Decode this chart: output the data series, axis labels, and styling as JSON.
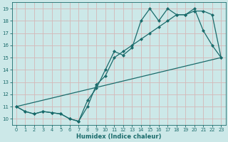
{
  "xlabel": "Humidex (Indice chaleur)",
  "bg_color": "#cce8e8",
  "grid_color": "#d4b8b8",
  "line_color": "#1a6b6b",
  "xlim": [
    -0.5,
    23.5
  ],
  "ylim": [
    9.5,
    19.5
  ],
  "xticks": [
    0,
    1,
    2,
    3,
    4,
    5,
    6,
    7,
    8,
    9,
    10,
    11,
    12,
    13,
    14,
    15,
    16,
    17,
    18,
    19,
    20,
    21,
    22,
    23
  ],
  "yticks": [
    10,
    11,
    12,
    13,
    14,
    15,
    16,
    17,
    18,
    19
  ],
  "line1_x": [
    0,
    1,
    2,
    3,
    4,
    5,
    6,
    7,
    8,
    9,
    10,
    11,
    12,
    13,
    14,
    15,
    16,
    17,
    18,
    19,
    20,
    21,
    22,
    23
  ],
  "line1_y": [
    11.0,
    10.6,
    10.4,
    10.6,
    10.5,
    10.4,
    10.0,
    9.8,
    11.5,
    12.5,
    14.0,
    15.5,
    15.2,
    15.8,
    18.0,
    19.0,
    18.0,
    19.0,
    18.5,
    18.5,
    19.0,
    17.2,
    16.0,
    15.0
  ],
  "line2_x": [
    0,
    23
  ],
  "line2_y": [
    11.0,
    15.0
  ],
  "line3_x": [
    0,
    1,
    2,
    3,
    4,
    5,
    6,
    7,
    8,
    9,
    10,
    11,
    12,
    13,
    14,
    15,
    16,
    17,
    18,
    19,
    20,
    21,
    22,
    23
  ],
  "line3_y": [
    11.0,
    10.6,
    10.4,
    10.6,
    10.5,
    10.4,
    10.0,
    9.8,
    11.0,
    12.8,
    13.5,
    15.0,
    15.5,
    16.0,
    16.5,
    17.0,
    17.5,
    18.0,
    18.5,
    18.5,
    18.8,
    18.8,
    18.5,
    15.0
  ]
}
